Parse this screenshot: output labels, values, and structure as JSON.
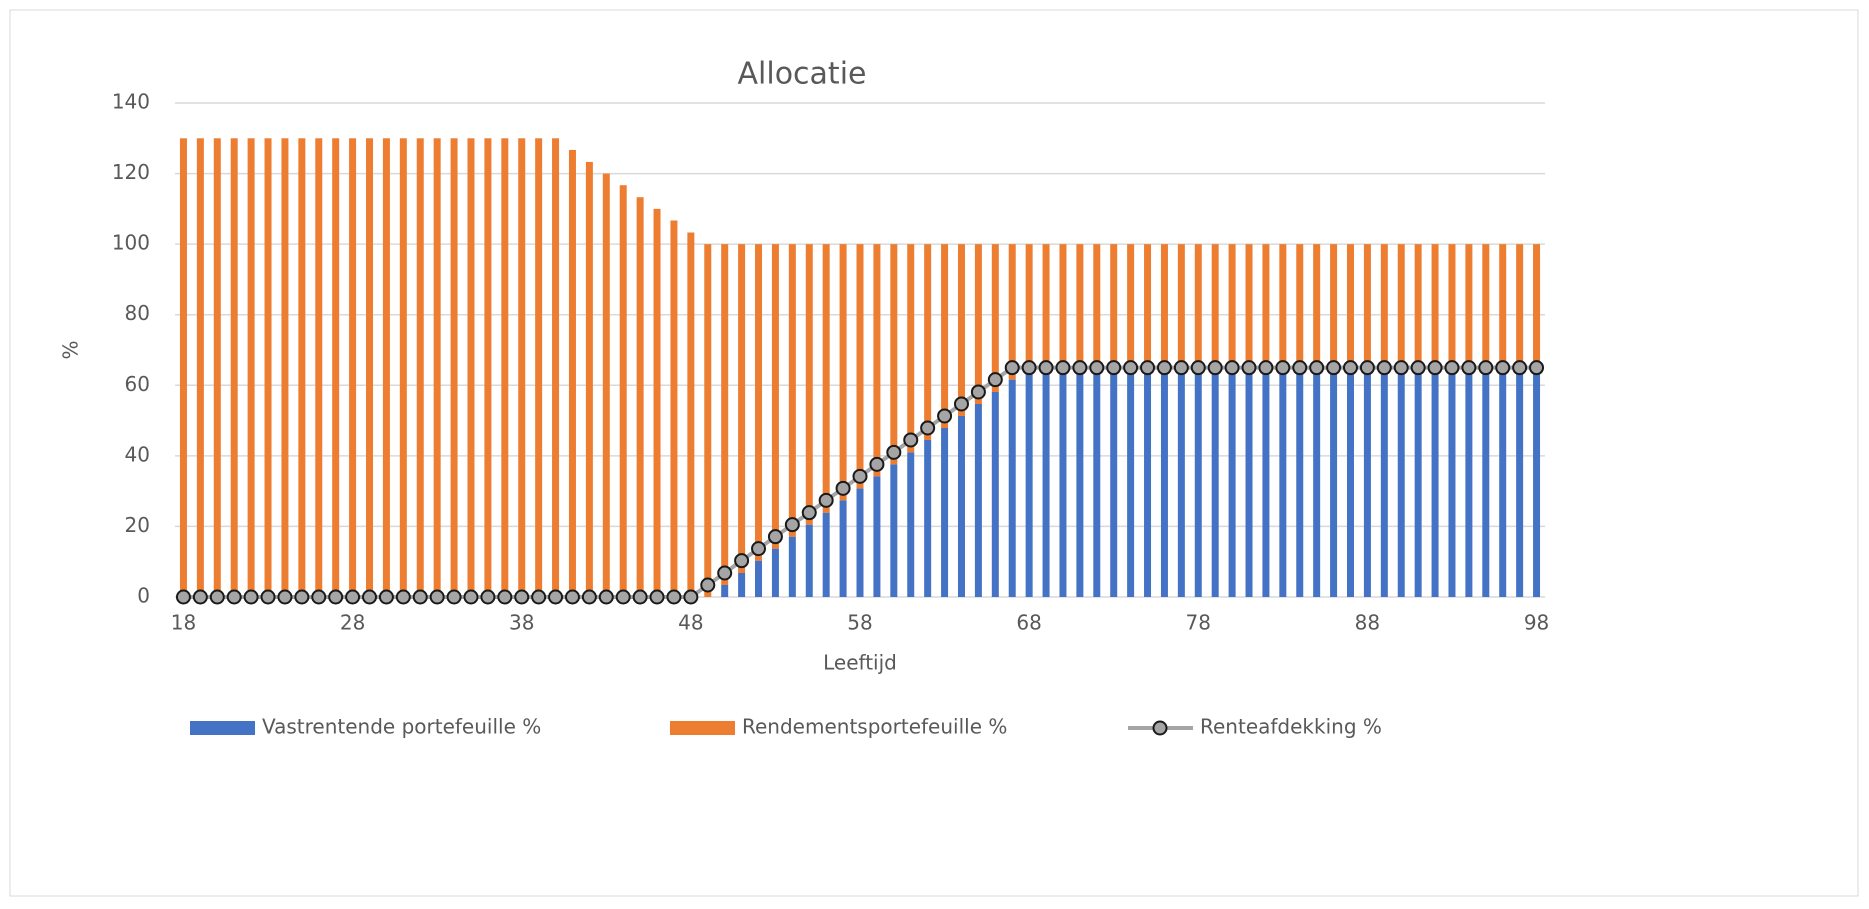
{
  "chart_data": {
    "type": "bar",
    "stacked": true,
    "title": "Allocatie",
    "x_label": "Leeftijd",
    "y_label": "%",
    "categories": [
      18,
      null,
      null,
      null,
      null,
      null,
      null,
      null,
      null,
      null,
      28,
      null,
      null,
      null,
      null,
      null,
      null,
      null,
      null,
      null,
      38,
      null,
      null,
      null,
      null,
      null,
      null,
      null,
      null,
      null,
      48,
      null,
      null,
      null,
      null,
      null,
      null,
      null,
      null,
      null,
      58,
      null,
      null,
      null,
      null,
      null,
      null,
      null,
      null,
      null,
      68,
      null,
      null,
      null,
      null,
      null,
      null,
      null,
      null,
      null,
      78,
      null,
      null,
      null,
      null,
      null,
      null,
      null,
      null,
      null,
      88,
      null,
      null,
      null,
      null,
      null,
      null,
      null,
      null,
      null,
      98
    ],
    "series": [
      {
        "name": "Vastrentende portefeuille %",
        "type": "bar",
        "color": "#4472c4",
        "values": [
          0,
          0,
          0,
          0,
          0,
          0,
          0,
          0,
          0,
          0,
          0,
          0,
          0,
          0,
          0,
          0,
          0,
          0,
          0,
          0,
          0,
          0,
          0,
          0,
          0,
          0,
          0,
          0,
          0,
          0,
          0,
          0,
          3.4,
          6.8,
          10.3,
          13.7,
          17.1,
          20.5,
          23.9,
          27.4,
          30.8,
          34.2,
          37.6,
          41.0,
          44.5,
          47.9,
          51.3,
          54.7,
          58.1,
          61.6,
          65,
          65,
          65,
          65,
          65,
          65,
          65,
          65,
          65,
          65,
          65,
          65,
          65,
          65,
          65,
          65,
          65,
          65,
          65,
          65,
          65,
          65,
          65,
          65,
          65,
          65,
          65,
          65,
          65,
          65,
          65
        ]
      },
      {
        "name": "Rendementsportefeuille %",
        "type": "bar",
        "color": "#ed7d31",
        "values": [
          130,
          130,
          130,
          130,
          130,
          130,
          130,
          130,
          130,
          130,
          130,
          130,
          130,
          130,
          130,
          130,
          130,
          130,
          130,
          130,
          130,
          130,
          130,
          126.7,
          123.3,
          120,
          116.7,
          113.3,
          110,
          106.7,
          103.3,
          100,
          96.6,
          93.2,
          89.7,
          86.3,
          82.9,
          79.5,
          76.1,
          72.6,
          69.2,
          65.8,
          62.4,
          59.0,
          55.5,
          52.1,
          48.7,
          45.3,
          41.9,
          38.4,
          35,
          35,
          35,
          35,
          35,
          35,
          35,
          35,
          35,
          35,
          35,
          35,
          35,
          35,
          35,
          35,
          35,
          35,
          35,
          35,
          35,
          35,
          35,
          35,
          35,
          35,
          35,
          35,
          35,
          35,
          35
        ]
      },
      {
        "name": "Renteafdekking %",
        "type": "line",
        "color": "#a5a5a5",
        "values": [
          0,
          0,
          0,
          0,
          0,
          0,
          0,
          0,
          0,
          0,
          0,
          0,
          0,
          0,
          0,
          0,
          0,
          0,
          0,
          0,
          0,
          0,
          0,
          0,
          0,
          0,
          0,
          0,
          0,
          0,
          0,
          3.4,
          6.8,
          10.3,
          13.7,
          17.1,
          20.5,
          23.9,
          27.4,
          30.8,
          34.2,
          37.6,
          41.0,
          44.5,
          47.9,
          51.3,
          54.7,
          58.1,
          61.6,
          65,
          65,
          65,
          65,
          65,
          65,
          65,
          65,
          65,
          65,
          65,
          65,
          65,
          65,
          65,
          65,
          65,
          65,
          65,
          65,
          65,
          65,
          65,
          65,
          65,
          65,
          65,
          65,
          65,
          65,
          65,
          65
        ]
      }
    ],
    "ylim": [
      0,
      140
    ],
    "yticks": [
      0,
      20,
      40,
      60,
      80,
      100,
      120,
      140
    ],
    "grid": true,
    "legend": "bottom"
  }
}
